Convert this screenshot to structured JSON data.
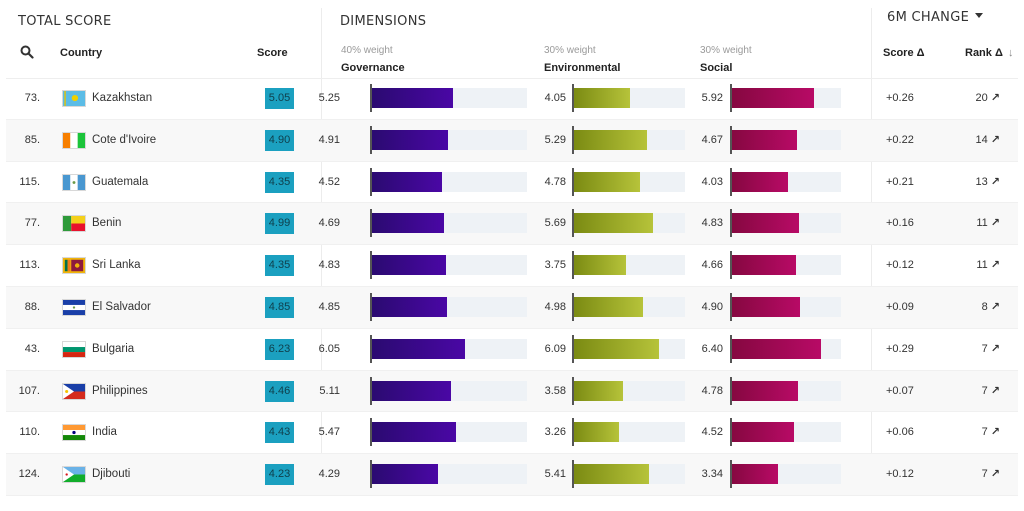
{
  "sections": {
    "total_score": "TOTAL SCORE",
    "dimensions": "DIMENSIONS",
    "change": "6M CHANGE"
  },
  "headers": {
    "country": "Country",
    "score": "Score",
    "governance": "Governance",
    "governance_weight": "40% weight",
    "environmental": "Environmental",
    "environmental_weight": "30% weight",
    "social": "Social",
    "social_weight": "30% weight",
    "score_delta": "Score Δ",
    "rank_delta": "Rank Δ",
    "sort_icon": "arrow-down-icon"
  },
  "colors": {
    "score_badge": "#1ba0c0",
    "governance": "#4a07a5",
    "environmental": "#b6c33a",
    "social": "#b80a66",
    "track": "#eef2f6"
  },
  "scale_max": 10,
  "rows": [
    {
      "rank": "73.",
      "country": "Kazakhstan",
      "flag": "kazakhstan-flag",
      "score": "5.05",
      "governance": "5.25",
      "environmental": "4.05",
      "social": "5.92",
      "score_delta": "+0.26",
      "rank_delta": "20"
    },
    {
      "rank": "85.",
      "country": "Cote d'Ivoire",
      "flag": "cote-divoire-flag",
      "score": "4.90",
      "governance": "4.91",
      "environmental": "5.29",
      "social": "4.67",
      "score_delta": "+0.22",
      "rank_delta": "14"
    },
    {
      "rank": "115.",
      "country": "Guatemala",
      "flag": "guatemala-flag",
      "score": "4.35",
      "governance": "4.52",
      "environmental": "4.78",
      "social": "4.03",
      "score_delta": "+0.21",
      "rank_delta": "13"
    },
    {
      "rank": "77.",
      "country": "Benin",
      "flag": "benin-flag",
      "score": "4.99",
      "governance": "4.69",
      "environmental": "5.69",
      "social": "4.83",
      "score_delta": "+0.16",
      "rank_delta": "11"
    },
    {
      "rank": "113.",
      "country": "Sri Lanka",
      "flag": "sri-lanka-flag",
      "score": "4.35",
      "governance": "4.83",
      "environmental": "3.75",
      "social": "4.66",
      "score_delta": "+0.12",
      "rank_delta": "11"
    },
    {
      "rank": "88.",
      "country": "El Salvador",
      "flag": "el-salvador-flag",
      "score": "4.85",
      "governance": "4.85",
      "environmental": "4.98",
      "social": "4.90",
      "score_delta": "+0.09",
      "rank_delta": "8"
    },
    {
      "rank": "43.",
      "country": "Bulgaria",
      "flag": "bulgaria-flag",
      "score": "6.23",
      "governance": "6.05",
      "environmental": "6.09",
      "social": "6.40",
      "score_delta": "+0.29",
      "rank_delta": "7"
    },
    {
      "rank": "107.",
      "country": "Philippines",
      "flag": "philippines-flag",
      "score": "4.46",
      "governance": "5.11",
      "environmental": "3.58",
      "social": "4.78",
      "score_delta": "+0.07",
      "rank_delta": "7"
    },
    {
      "rank": "110.",
      "country": "India",
      "flag": "india-flag",
      "score": "4.43",
      "governance": "5.47",
      "environmental": "3.26",
      "social": "4.52",
      "score_delta": "+0.06",
      "rank_delta": "7"
    },
    {
      "rank": "124.",
      "country": "Djibouti",
      "flag": "djibouti-flag",
      "score": "4.23",
      "governance": "4.29",
      "environmental": "5.41",
      "social": "3.34",
      "score_delta": "+0.12",
      "rank_delta": "7"
    }
  ]
}
